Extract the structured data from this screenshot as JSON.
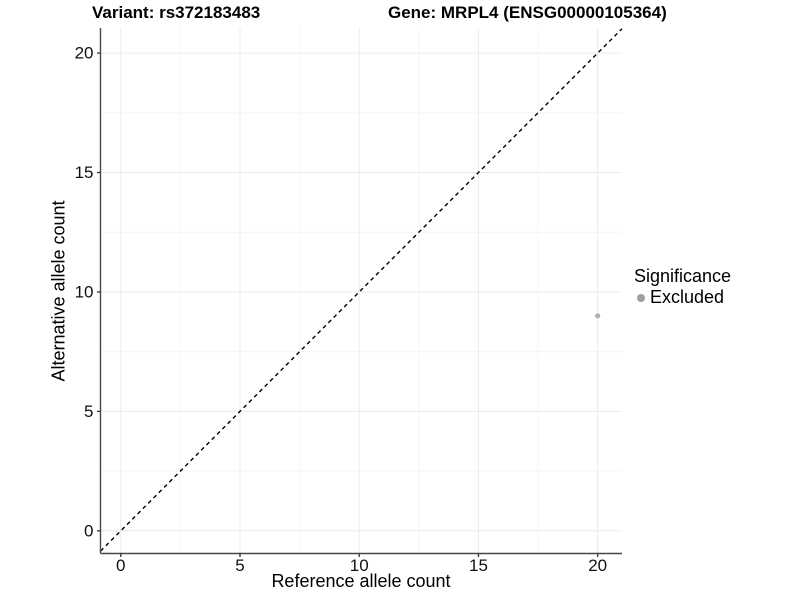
{
  "figure": {
    "background": "#ffffff"
  },
  "chart_data": {
    "type": "scatter",
    "titles": {
      "left": "Variant: rs372183483",
      "right": "Gene: MRPL4 (ENSG00000105364)"
    },
    "xlabel": "Reference allele count",
    "ylabel": "Alternative allele count",
    "x_ticks": [
      0,
      5,
      10,
      15,
      20
    ],
    "y_ticks": [
      0,
      5,
      10,
      15,
      20
    ],
    "x_minor_ticks": [
      2.5,
      7.5,
      12.5,
      17.5
    ],
    "y_minor_ticks": [
      2.5,
      7.5,
      12.5,
      17.5
    ],
    "xlim": [
      -0.85,
      21.02
    ],
    "ylim": [
      -0.95,
      21.05
    ],
    "grid": "major and minor, very light gray on white",
    "identity_line": {
      "equation": "y = x",
      "style": "dashed",
      "color": "#000000"
    },
    "series": [
      {
        "name": "Excluded",
        "color": "#b0b0b0",
        "point_radius": 2.6,
        "points": [
          {
            "x": 20,
            "y": 9
          }
        ]
      }
    ],
    "legend": {
      "title": "Significance",
      "position": "right",
      "items": [
        {
          "label": "Excluded",
          "color": "#9f9f9f"
        }
      ]
    },
    "colors": {
      "axis_line": "#474747",
      "tick_mark": "#333333",
      "tick_label": "#111111",
      "grid_major": "#ebebeb",
      "grid_minor": "#f6f6f6",
      "title": "#000000"
    }
  }
}
